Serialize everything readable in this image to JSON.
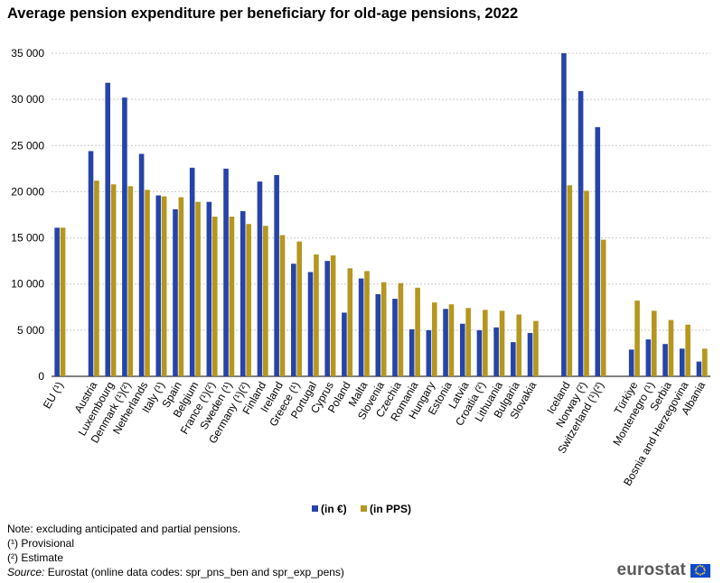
{
  "colors": {
    "eur": "#2644a8",
    "pps": "#b5961f",
    "grid": "#c8c8c8",
    "flag": "#0e47cb",
    "star": "#ffd617"
  },
  "chart_data": {
    "type": "bar",
    "title": "Average pension expenditure per beneficiary for old-age pensions, 2022",
    "xlabel": "",
    "ylabel": "",
    "ylim": [
      0,
      35000
    ],
    "yticks": [
      0,
      5000,
      10000,
      15000,
      20000,
      25000,
      30000,
      35000
    ],
    "ytick_labels": [
      "0",
      "5 000",
      "10 000",
      "15 000",
      "20 000",
      "25 000",
      "30 000",
      "35 000"
    ],
    "grid": true,
    "legend_position": "bottom-center",
    "categories": [
      "EU (¹)",
      "",
      "Austria",
      "Luxembourg",
      "Denmark (¹)(²)",
      "Netherlands",
      "Italy (¹)",
      "Spain",
      "Belgium",
      "France (¹)(²)",
      "Sweden (¹)",
      "Germany (¹)(²)",
      "Finland",
      "Ireland",
      "Greece (¹)",
      "Portugal",
      "Cyprus",
      "Poland",
      "Malta",
      "Slovenia",
      "Czechia",
      "Romania",
      "Hungary",
      "Estonia",
      "Latvia",
      "Croatia (²)",
      "Lithuania",
      "Bulgaria",
      "Slovakia",
      "",
      "Iceland",
      "Norway (²)",
      "Switzerland (¹)(²)",
      "",
      "Türkiye",
      "Montenegro (¹)",
      "Serbia",
      "Bosnia and Herzegovina",
      "Albania"
    ],
    "series": [
      {
        "name": "(in €)",
        "values": [
          16100,
          null,
          24400,
          31800,
          30200,
          24100,
          19600,
          18100,
          22600,
          18900,
          22500,
          17900,
          21100,
          21800,
          12200,
          11300,
          12500,
          6900,
          10600,
          8900,
          8400,
          5100,
          5000,
          7300,
          5700,
          5000,
          5300,
          3700,
          4700,
          null,
          35000,
          30900,
          27000,
          null,
          2900,
          4000,
          3500,
          3000,
          1600
        ]
      },
      {
        "name": "(in PPS)",
        "values": [
          16100,
          null,
          21200,
          20800,
          20600,
          20200,
          19500,
          19400,
          18900,
          17300,
          17300,
          16500,
          16300,
          15300,
          14600,
          13200,
          13100,
          11700,
          11400,
          10200,
          10100,
          9600,
          8000,
          7800,
          7400,
          7200,
          7100,
          6700,
          6000,
          null,
          20700,
          20100,
          14800,
          null,
          8200,
          7100,
          6100,
          5600,
          3000
        ]
      }
    ]
  },
  "notes": {
    "note": "Note: excluding anticipated and partial pensions.",
    "provisional": "(¹) Provisional",
    "estimate": "(²) Estimate",
    "source_label": "Source:",
    "source_text": " Eurostat (online data codes: spr_pns_ben and spr_exp_pens)"
  },
  "logo": {
    "text": "eurostat"
  }
}
